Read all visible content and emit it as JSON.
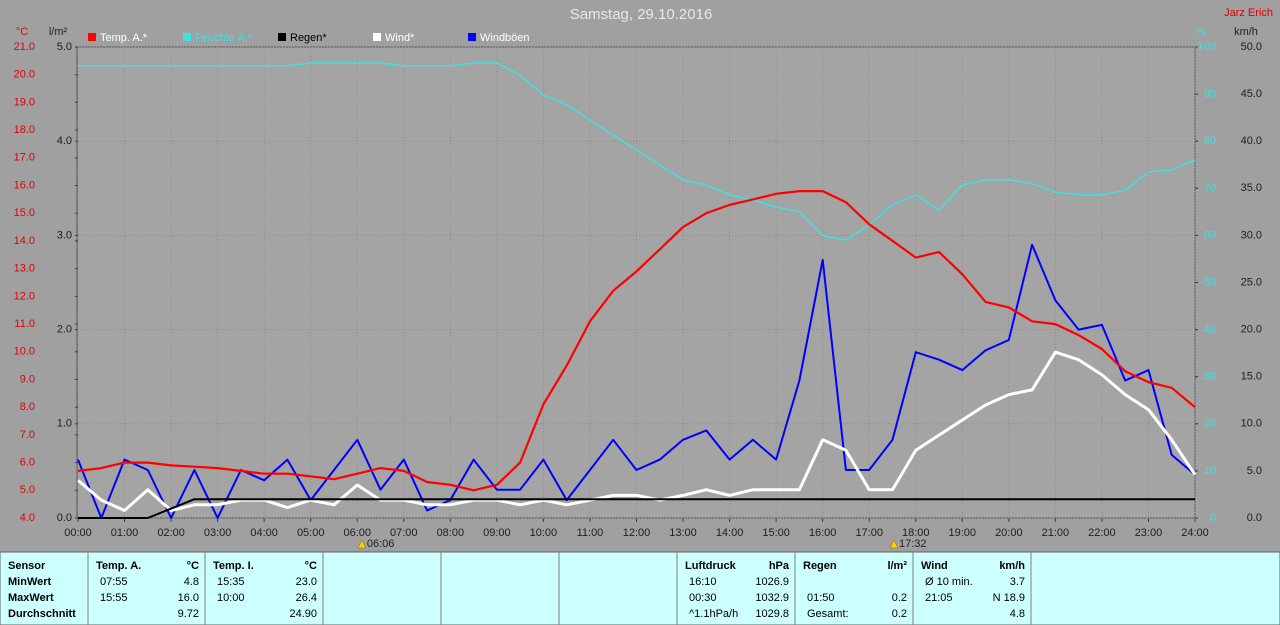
{
  "chart_data": {
    "type": "line",
    "title": "Samstag, 29.10.2016",
    "author": "Jarz Erich",
    "y_label": "°C",
    "y2_label": "l/m²",
    "y3_label": "%",
    "y4_label": "km/h",
    "x": [
      0,
      0.5,
      1,
      1.5,
      2,
      2.5,
      3,
      3.5,
      4,
      4.5,
      5,
      5.5,
      6,
      6.5,
      7,
      7.5,
      8,
      8.5,
      9,
      9.5,
      10,
      10.5,
      11,
      11.5,
      12,
      12.5,
      13,
      13.5,
      14,
      14.5,
      15,
      15.5,
      16,
      16.5,
      17,
      17.5,
      18,
      18.5,
      19,
      19.5,
      20,
      20.5,
      21,
      21.5,
      22,
      22.5,
      23,
      23.5,
      24
    ],
    "xlim": [
      0,
      24
    ],
    "xticks": [
      {
        "value": 0,
        "label": "00:00"
      },
      {
        "value": 1,
        "label": "01:00"
      },
      {
        "value": 2,
        "label": "02:00"
      },
      {
        "value": 3,
        "label": "03:00"
      },
      {
        "value": 4,
        "label": "04:00"
      },
      {
        "value": 5,
        "label": "05:00"
      },
      {
        "value": 6,
        "label": "06:00"
      },
      {
        "value": 7,
        "label": "07:00"
      },
      {
        "value": 8,
        "label": "08:00"
      },
      {
        "value": 9,
        "label": "09:00"
      },
      {
        "value": 10,
        "label": "10:00"
      },
      {
        "value": 11,
        "label": "11:00"
      },
      {
        "value": 12,
        "label": "12:00"
      },
      {
        "value": 13,
        "label": "13:00"
      },
      {
        "value": 14,
        "label": "14:00"
      },
      {
        "value": 15,
        "label": "15:00"
      },
      {
        "value": 16,
        "label": "16:00"
      },
      {
        "value": 17,
        "label": "17:00"
      },
      {
        "value": 18,
        "label": "18:00"
      },
      {
        "value": 19,
        "label": "19:00"
      },
      {
        "value": 20,
        "label": "20:00"
      },
      {
        "value": 21,
        "label": "21:00"
      },
      {
        "value": 22,
        "label": "22:00"
      },
      {
        "value": 23,
        "label": "23:00"
      },
      {
        "value": 24,
        "label": "24:00"
      }
    ],
    "ylim": [
      4,
      21
    ],
    "yticks": [
      {
        "value": 4,
        "label": "4.0"
      },
      {
        "value": 5,
        "label": "5.0"
      },
      {
        "value": 6,
        "label": "6.0"
      },
      {
        "value": 7,
        "label": "7.0"
      },
      {
        "value": 8,
        "label": "8.0"
      },
      {
        "value": 9,
        "label": "9.0"
      },
      {
        "value": 10,
        "label": "10.0"
      },
      {
        "value": 11,
        "label": "11.0"
      },
      {
        "value": 12,
        "label": "12.0"
      },
      {
        "value": 13,
        "label": "13.0"
      },
      {
        "value": 14,
        "label": "14.0"
      },
      {
        "value": 15,
        "label": "15.0"
      },
      {
        "value": 16,
        "label": "16.0"
      },
      {
        "value": 17,
        "label": "17.0"
      },
      {
        "value": 18,
        "label": "18.0"
      },
      {
        "value": 19,
        "label": "19.0"
      },
      {
        "value": 20,
        "label": "20.0"
      },
      {
        "value": 21,
        "label": "21.0"
      }
    ],
    "y2lim": [
      0,
      5
    ],
    "y2ticks": [
      {
        "value": 0,
        "label": "0.0"
      },
      {
        "value": 1,
        "label": "1.0"
      },
      {
        "value": 2,
        "label": "2.0"
      },
      {
        "value": 3,
        "label": "3.0"
      },
      {
        "value": 4,
        "label": "4.0"
      },
      {
        "value": 5,
        "label": "5.0"
      }
    ],
    "y3lim": [
      0,
      100
    ],
    "y3ticks": [
      0,
      10,
      20,
      30,
      40,
      50,
      60,
      70,
      80,
      90,
      100
    ],
    "y4lim": [
      0,
      50
    ],
    "y4ticks": [
      {
        "value": 0,
        "label": "0.0"
      },
      {
        "value": 5,
        "label": "5.0"
      },
      {
        "value": 10,
        "label": "10.0"
      },
      {
        "value": 15,
        "label": "15.0"
      },
      {
        "value": 20,
        "label": "20.0"
      },
      {
        "value": 25,
        "label": "25.0"
      },
      {
        "value": 30,
        "label": "30.0"
      },
      {
        "value": 35,
        "label": "35.0"
      },
      {
        "value": 40,
        "label": "40.0"
      },
      {
        "value": 45,
        "label": "45.0"
      },
      {
        "value": 50,
        "label": "50.0"
      }
    ],
    "grid": true,
    "annotations": [
      "06:06",
      "17:32"
    ],
    "series": [
      {
        "name": "Temp. A.*",
        "color": "#ff0000",
        "axis": "y",
        "values": [
          5.7,
          5.8,
          6.0,
          6.0,
          5.9,
          5.85,
          5.8,
          5.7,
          5.6,
          5.6,
          5.5,
          5.4,
          5.6,
          5.8,
          5.7,
          5.3,
          5.2,
          5.0,
          5.2,
          6.0,
          8.1,
          9.5,
          11.1,
          12.2,
          12.9,
          13.7,
          14.5,
          15.0,
          15.3,
          15.5,
          15.7,
          15.8,
          15.8,
          15.4,
          14.6,
          14.0,
          13.4,
          13.6,
          12.8,
          11.8,
          11.6,
          11.1,
          11.0,
          10.6,
          10.1,
          9.3,
          8.9,
          8.7,
          8.0
        ]
      },
      {
        "name": "Feuchte A.*",
        "color": "#40e0e0",
        "axis": "y3",
        "values": [
          96,
          96,
          96,
          96,
          96,
          96,
          96,
          96,
          96,
          96,
          96.6,
          96.6,
          96.6,
          96.6,
          96,
          96,
          96,
          96.6,
          96.6,
          94,
          89.8,
          87.7,
          84.5,
          81.3,
          78.1,
          75,
          71.8,
          70.7,
          68.6,
          67.5,
          66,
          65,
          60,
          59,
          62.2,
          66.5,
          68.6,
          65.4,
          70.7,
          71.8,
          71.8,
          71,
          69.2,
          68.6,
          68.6,
          69.6,
          73.5,
          73.9,
          76
        ]
      },
      {
        "name": "Regen*",
        "color": "#000000",
        "axis": "y2",
        "values": [
          0,
          0,
          0,
          0,
          0.1,
          0.2,
          0.2,
          0.2,
          0.2,
          0.2,
          0.2,
          0.2,
          0.2,
          0.2,
          0.2,
          0.2,
          0.2,
          0.2,
          0.2,
          0.2,
          0.2,
          0.2,
          0.2,
          0.2,
          0.2,
          0.2,
          0.2,
          0.2,
          0.2,
          0.2,
          0.2,
          0.2,
          0.2,
          0.2,
          0.2,
          0.2,
          0.2,
          0.2,
          0.2,
          0.2,
          0.2,
          0.2,
          0.2,
          0.2,
          0.2,
          0.2,
          0.2,
          0.2,
          0.2
        ]
      },
      {
        "name": "Wind*",
        "color": "#ffffff",
        "axis": "y4",
        "values": [
          4.0,
          1.9,
          0.8,
          3.0,
          0.8,
          1.4,
          1.4,
          1.9,
          1.9,
          1.1,
          1.9,
          1.4,
          3.5,
          1.9,
          1.9,
          1.4,
          1.4,
          1.9,
          1.9,
          1.4,
          1.9,
          1.4,
          1.9,
          2.4,
          2.4,
          1.9,
          2.4,
          3.0,
          2.4,
          3.0,
          3.0,
          3.0,
          8.3,
          7.2,
          3.0,
          3.0,
          7.2,
          8.8,
          10.4,
          12.0,
          13.1,
          13.6,
          17.6,
          16.8,
          15.2,
          13.1,
          11.5,
          8.3,
          4.6
        ]
      },
      {
        "name": "Windböen",
        "color": "#0000ff",
        "axis": "y4",
        "values": [
          6.2,
          0,
          6.2,
          5.1,
          0,
          5.1,
          0,
          5.1,
          4.0,
          6.2,
          1.9,
          5.1,
          8.3,
          3.0,
          6.2,
          0.8,
          1.9,
          6.2,
          3.0,
          3.0,
          6.2,
          1.9,
          5.1,
          8.3,
          5.1,
          6.2,
          8.3,
          9.3,
          6.2,
          8.3,
          6.2,
          14.6,
          27.4,
          5.1,
          5.1,
          8.3,
          17.6,
          16.8,
          15.7,
          17.8,
          18.9,
          29.0,
          23.1,
          20.0,
          20.5,
          14.6,
          15.7,
          6.7,
          4.6
        ]
      }
    ]
  },
  "table": {
    "groups": [
      {
        "header": [
          "Sensor"
        ],
        "rows": [
          [
            "MinWert"
          ],
          [
            "MaxWert"
          ],
          [
            "Durchschnitt"
          ]
        ]
      },
      {
        "header": [
          "Temp. A.",
          "°C"
        ],
        "rows": [
          [
            "07:55",
            "4.8"
          ],
          [
            "15:55",
            "16.0"
          ],
          [
            null,
            "9.72"
          ]
        ]
      },
      {
        "header": [
          "Temp. I.",
          "°C"
        ],
        "rows": [
          [
            "15:35",
            "23.0"
          ],
          [
            "10:00",
            "26.4"
          ],
          [
            null,
            "24.90"
          ]
        ]
      },
      {
        "header": [
          "Luftdruck",
          "hPa"
        ],
        "rows": [
          [
            "16:10",
            "1026.9"
          ],
          [
            "00:30",
            "1032.9"
          ],
          [
            "^1.1hPa/h",
            "1029.8"
          ]
        ]
      },
      {
        "header": [
          "Regen",
          "l/m²"
        ],
        "rows": [
          [
            null,
            null
          ],
          [
            "01:50",
            "0.2"
          ],
          [
            "Gesamt:",
            "0.2"
          ]
        ]
      },
      {
        "header": [
          "Wind",
          "km/h"
        ],
        "rows": [
          [
            "Ø 10 min.",
            "3.7"
          ],
          [
            "21:05",
            "N 18.9"
          ],
          [
            null,
            "4.8"
          ]
        ]
      }
    ]
  }
}
